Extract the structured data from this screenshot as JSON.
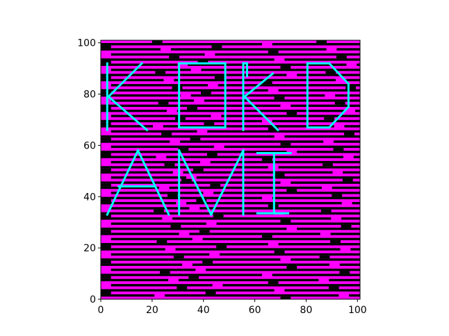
{
  "chart_data": {
    "type": "heatmap",
    "title": "",
    "xlabel": "",
    "ylabel": "",
    "xlim": [
      0,
      101
    ],
    "ylim": [
      0,
      101
    ],
    "x_ticks": [
      "0",
      "20",
      "40",
      "60",
      "80",
      "100"
    ],
    "y_ticks": [
      "0",
      "20",
      "40",
      "60",
      "80",
      "100"
    ],
    "x_tick_values": [
      0,
      20,
      40,
      60,
      80,
      100
    ],
    "y_tick_values": [
      0,
      20,
      40,
      60,
      80,
      100
    ],
    "grid": false,
    "colors": {
      "background": "#000000",
      "stripe": "#ff00ff",
      "letters": "#00ffff"
    },
    "letters": [
      {
        "char": "K",
        "x": [
          2,
          18
        ],
        "y": [
          66,
          92
        ]
      },
      {
        "char": "O",
        "x": [
          30,
          49
        ],
        "y": [
          67,
          92
        ]
      },
      {
        "char": "R",
        "x": [
          55,
          69
        ],
        "y": [
          66,
          92
        ]
      },
      {
        "char": "D",
        "x": [
          80,
          97
        ],
        "y": [
          67,
          92
        ]
      },
      {
        "char": "A",
        "x": [
          2,
          27
        ],
        "y": [
          33,
          58
        ]
      },
      {
        "char": "N",
        "x": [
          30,
          56
        ],
        "y": [
          33,
          58
        ]
      },
      {
        "char": "I",
        "x": [
          61,
          74
        ],
        "y": [
          33,
          58
        ]
      }
    ]
  }
}
